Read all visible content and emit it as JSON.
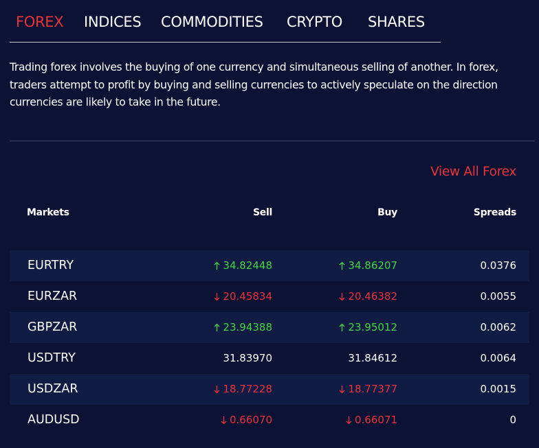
{
  "tabs": {
    "items": [
      "FOREX",
      "INDICES",
      "COMMODITIES",
      "CRYPTO",
      "SHARES"
    ],
    "active": 0
  },
  "description": "Trading forex involves the buying of one currency and simultaneous selling of another. In forex, traders attempt to profit by buying and selling currencies to actively speculate on the direction currencies are likely to take in the future.",
  "link": "View All Forex",
  "table": {
    "headers": [
      "Markets",
      "Sell",
      "Buy",
      "Spreads"
    ],
    "rows": [
      {
        "market": "EURTRY",
        "sell": "34.82448",
        "buy": "34.86207",
        "spread": "0.0376",
        "trend": "up"
      },
      {
        "market": "EURZAR",
        "sell": "20.45834",
        "buy": "20.46382",
        "spread": "0.0055",
        "trend": "down"
      },
      {
        "market": "GBPZAR",
        "sell": "23.94388",
        "buy": "23.95012",
        "spread": "0.0062",
        "trend": "up"
      },
      {
        "market": "USDTRY",
        "sell": "31.83970",
        "buy": "31.84612",
        "spread": "0.0064",
        "trend": "flat"
      },
      {
        "market": "USDZAR",
        "sell": "18.77228",
        "buy": "18.77377",
        "spread": "0.0015",
        "trend": "down"
      },
      {
        "market": "AUDUSD",
        "sell": "0.66070",
        "buy": "0.66071",
        "spread": "0",
        "trend": "down"
      }
    ]
  }
}
